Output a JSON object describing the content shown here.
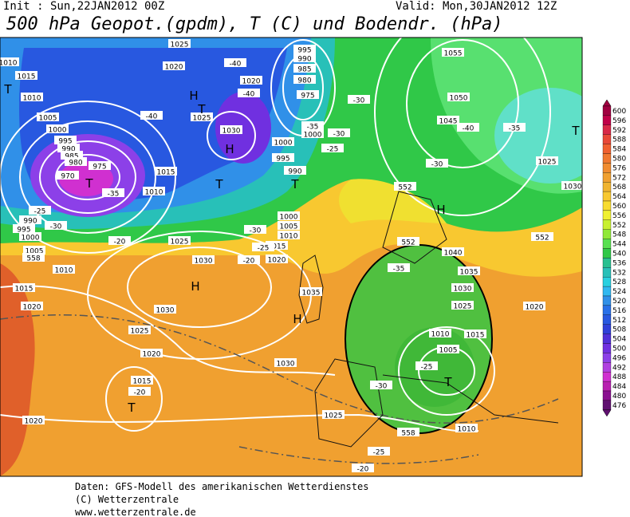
{
  "header": {
    "init": "Init : Sun,22JAN2012 00Z",
    "valid": "Valid: Mon,30JAN2012 12Z",
    "title": "500 hPa Geopot.(gpdm), T (C) und Bodendr. (hPa)"
  },
  "colorbar": {
    "labels": [
      600,
      596,
      592,
      588,
      584,
      580,
      576,
      572,
      568,
      564,
      560,
      556,
      552,
      548,
      544,
      540,
      536,
      532,
      528,
      524,
      520,
      516,
      512,
      508,
      504,
      500,
      496,
      492,
      488,
      484,
      480,
      476
    ]
  },
  "map_labels": [
    "1010",
    "1025",
    "1020",
    "1015",
    "1010",
    "1005",
    "1000",
    "995",
    "990",
    "985",
    "980",
    "975",
    "970",
    "990",
    "995",
    "1000",
    "1005",
    "1010",
    "1015",
    "1020",
    "1020",
    "-40",
    "-40",
    "1025",
    "1030",
    "-40",
    "1020",
    "995",
    "990",
    "985",
    "980",
    "975",
    "-30",
    "-35",
    "-30",
    "1000",
    "-25",
    "1000",
    "995",
    "990",
    "1015",
    "1010",
    "-35",
    "-25",
    "-30",
    "-20",
    "1025",
    "1030",
    "-20",
    "1020",
    "1015",
    "-25",
    "-30",
    "1000",
    "1005",
    "1010",
    "1035",
    "1030",
    "1025",
    "1020",
    "1015",
    "-20",
    "1030",
    "1025",
    "-25",
    "-20",
    "1010",
    "-30",
    "-25",
    "1005",
    "1010",
    "1015",
    "1020",
    "1025",
    "1030",
    "1035",
    "1040",
    "-35",
    "1050",
    "1055",
    "1045",
    "-40",
    "-35",
    "-30",
    "1025",
    "1030",
    "552",
    "552",
    "552",
    "558",
    "558"
  ],
  "pressure_centers": [
    "T",
    "T",
    "H",
    "T",
    "H",
    "T",
    "T",
    "H",
    "H",
    "H",
    "T",
    "T",
    "T"
  ],
  "footer": [
    "Daten: GFS-Modell des amerikanischen Wetterdienstes",
    "(C) Wetterzentrale",
    "www.wetterzentrale.de"
  ]
}
